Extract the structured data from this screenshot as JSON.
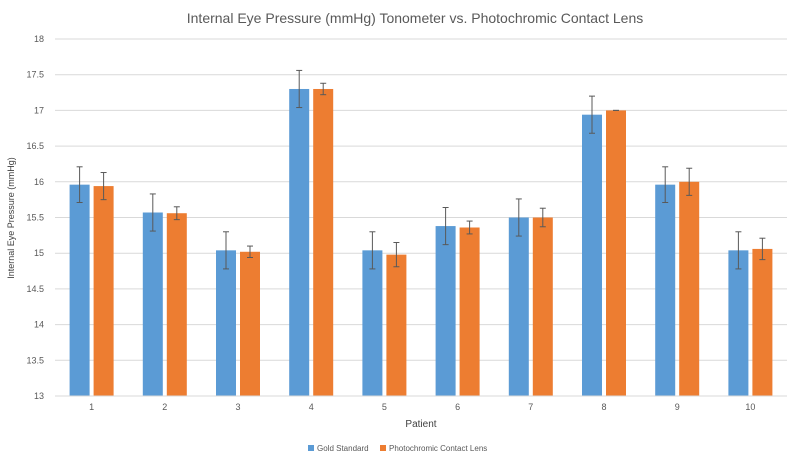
{
  "chart_data": {
    "type": "bar",
    "title": "Internal Eye Pressure (mmHg) Tonometer vs. Photochromic Contact Lens",
    "xlabel": "Patient",
    "ylabel": "Internal Eye Pressure (mmHg)",
    "ylim": [
      13,
      18
    ],
    "yticks": [
      "13",
      "13.5",
      "14",
      "14.5",
      "15",
      "15.5",
      "16",
      "16.5",
      "17",
      "17.5",
      "18"
    ],
    "categories": [
      "1",
      "2",
      "3",
      "4",
      "5",
      "6",
      "7",
      "8",
      "9",
      "10"
    ],
    "grid": true,
    "legend": "bottom",
    "series": [
      {
        "name": "Gold Standard",
        "color": "#5B9BD5",
        "values": [
          15.96,
          15.57,
          15.04,
          17.3,
          15.04,
          15.38,
          15.5,
          16.94,
          15.96,
          15.04
        ],
        "errors": [
          0.25,
          0.26,
          0.26,
          0.26,
          0.26,
          0.26,
          0.26,
          0.26,
          0.25,
          0.26
        ]
      },
      {
        "name": "Photochromic Contact Lens",
        "color": "#ED7D31",
        "values": [
          15.94,
          15.56,
          15.02,
          17.3,
          14.98,
          15.36,
          15.5,
          17.0,
          16.0,
          15.06
        ],
        "errors": [
          0.19,
          0.09,
          0.08,
          0.08,
          0.17,
          0.09,
          0.13,
          0.0,
          0.19,
          0.15
        ]
      }
    ]
  }
}
